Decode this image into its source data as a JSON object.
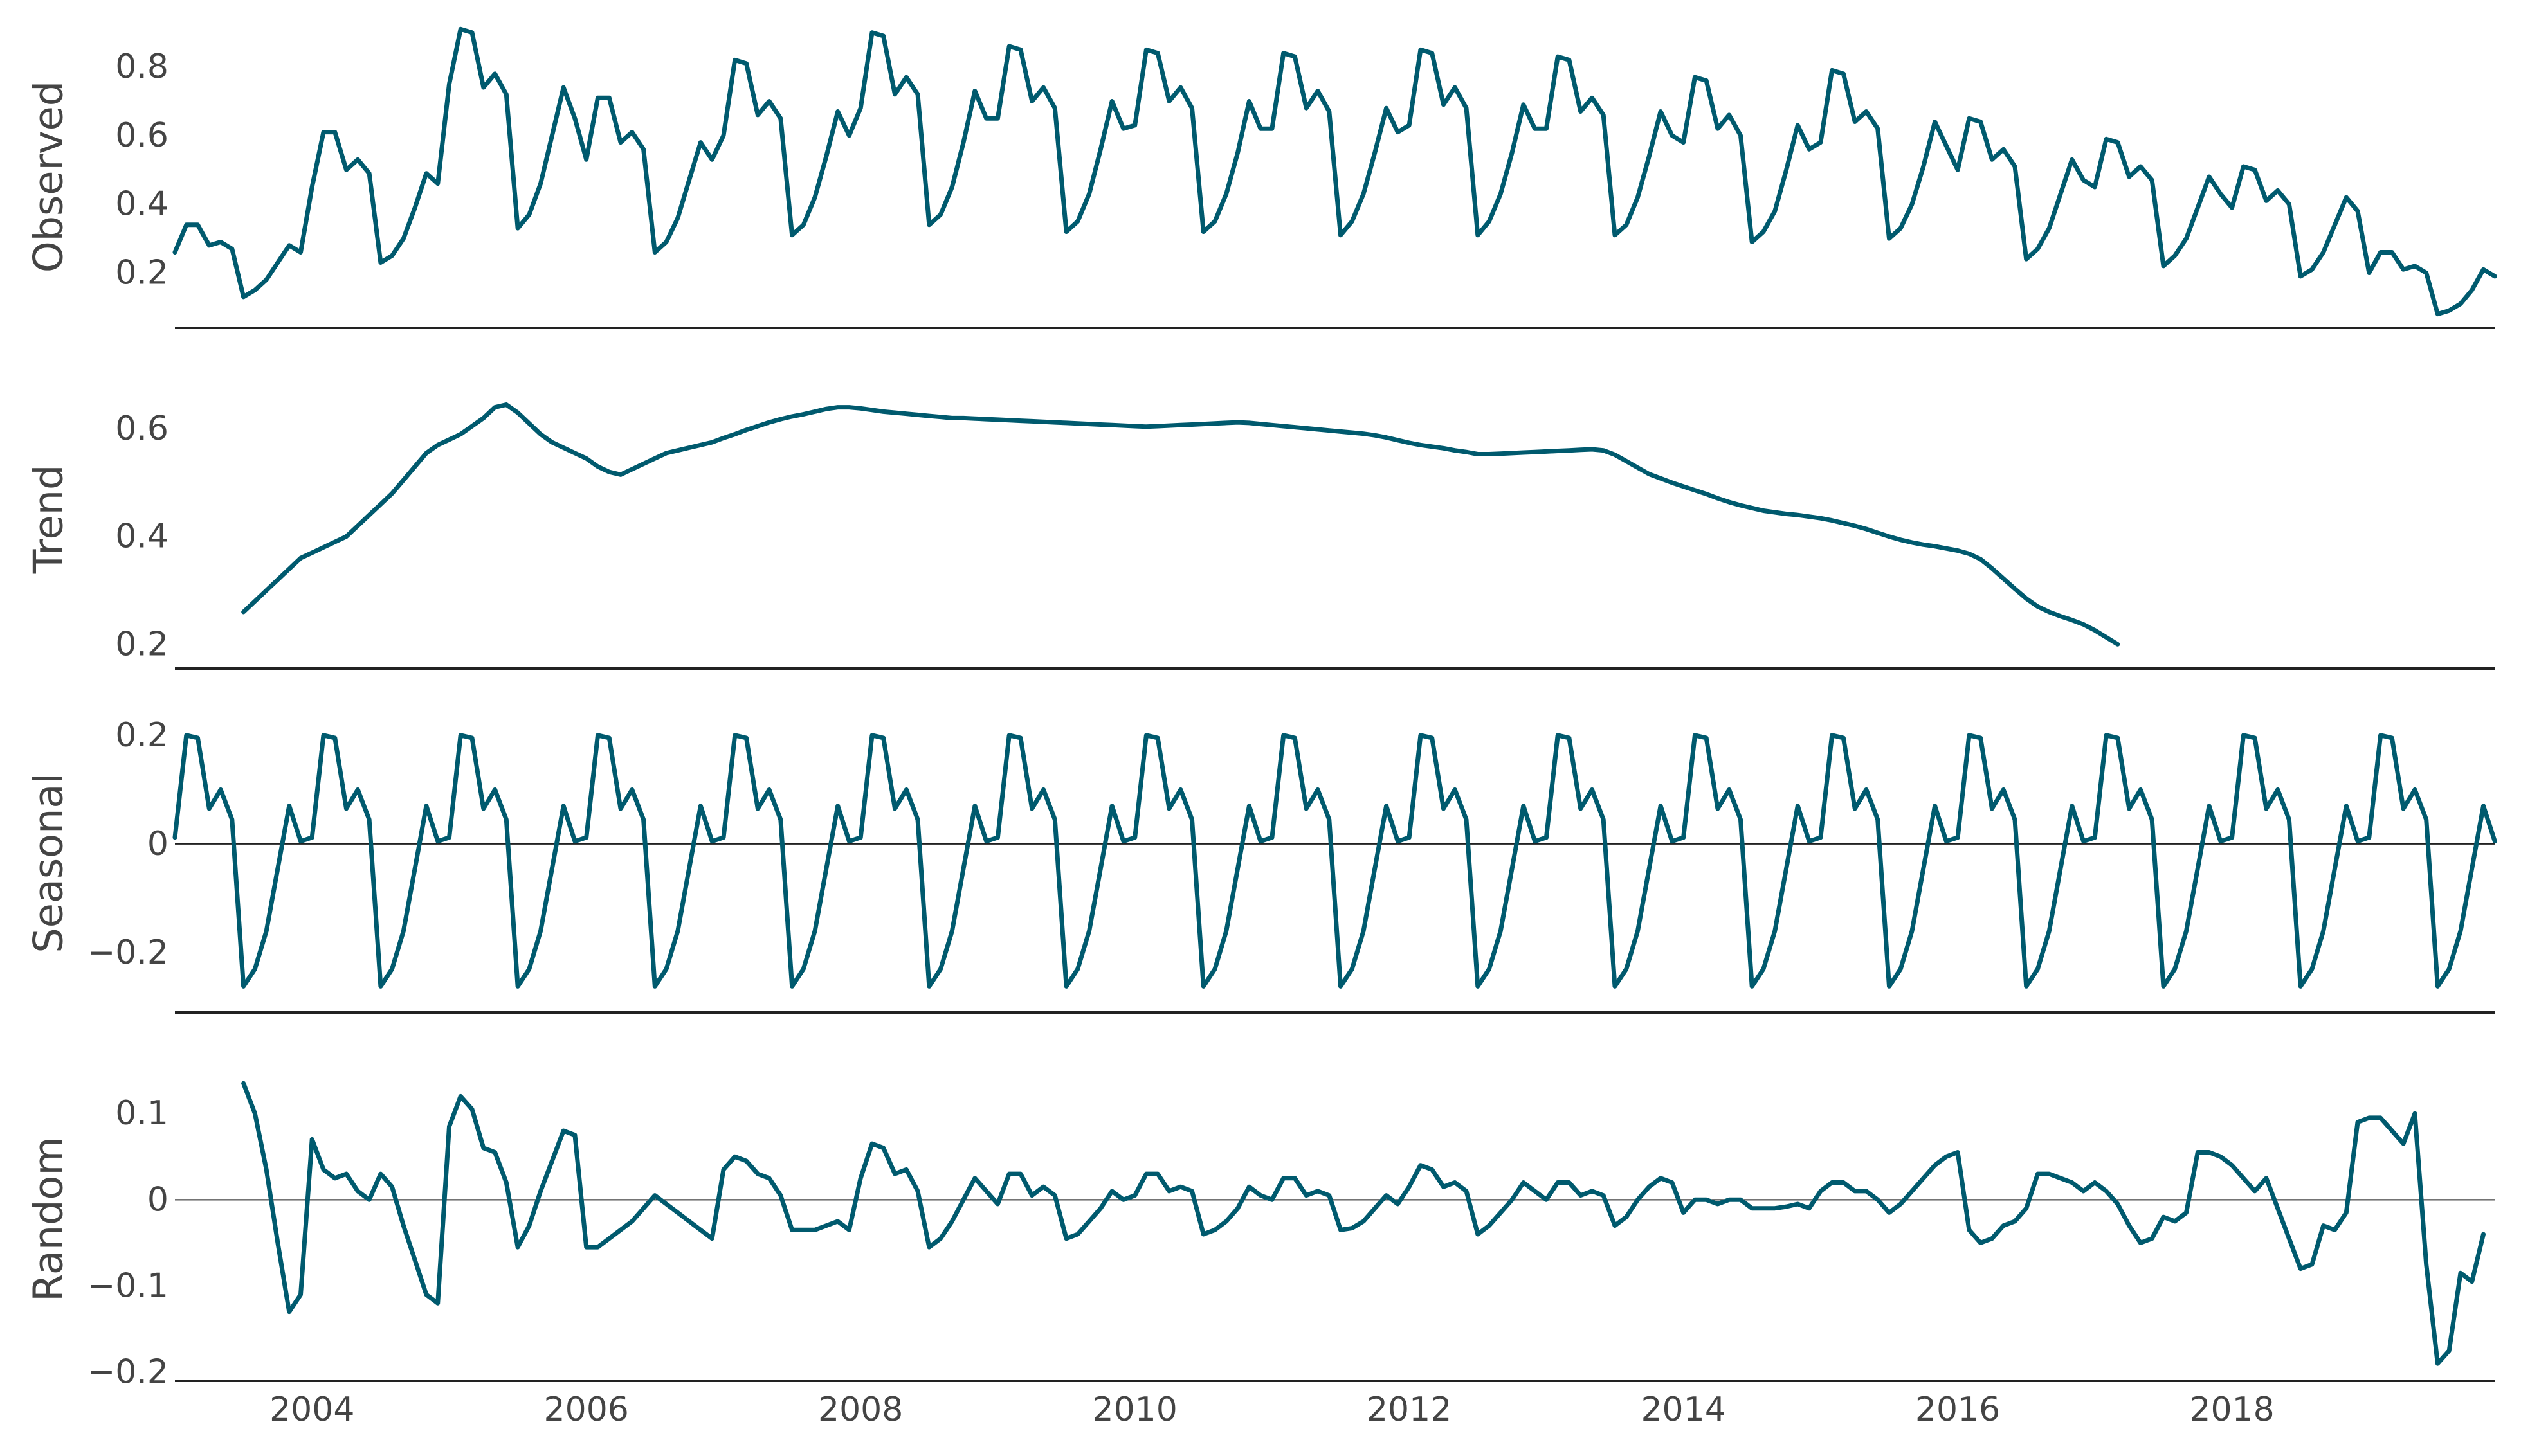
{
  "theme": {
    "line_color": "#005a6e",
    "axis_color": "#222222",
    "text_color": "#444444"
  },
  "chart_data": [
    {
      "type": "line",
      "ylabel": "Observed",
      "x_start": 2003.0,
      "x_step": 0.0833333,
      "ylim": [
        0.04,
        0.92
      ],
      "yticks": [
        0.2,
        0.4,
        0.6,
        0.8
      ],
      "ytick_labels": [
        "0.2",
        "0.4",
        "0.6",
        "0.8"
      ],
      "zero_line": false,
      "values": [
        0.26,
        0.34,
        0.34,
        0.28,
        0.29,
        0.27,
        0.13,
        0.15,
        0.18,
        0.23,
        0.28,
        0.26,
        0.45,
        0.61,
        0.61,
        0.5,
        0.53,
        0.49,
        0.23,
        0.25,
        0.3,
        0.39,
        0.49,
        0.46,
        0.75,
        0.91,
        0.9,
        0.74,
        0.78,
        0.72,
        0.33,
        0.37,
        0.46,
        0.6,
        0.74,
        0.65,
        0.53,
        0.71,
        0.71,
        0.58,
        0.61,
        0.56,
        0.26,
        0.29,
        0.36,
        0.47,
        0.58,
        0.53,
        0.6,
        0.82,
        0.81,
        0.66,
        0.7,
        0.65,
        0.31,
        0.34,
        0.42,
        0.54,
        0.67,
        0.6,
        0.68,
        0.9,
        0.89,
        0.72,
        0.77,
        0.72,
        0.34,
        0.37,
        0.45,
        0.58,
        0.73,
        0.65,
        0.65,
        0.86,
        0.85,
        0.7,
        0.74,
        0.68,
        0.32,
        0.35,
        0.43,
        0.56,
        0.7,
        0.62,
        0.63,
        0.85,
        0.84,
        0.7,
        0.74,
        0.68,
        0.32,
        0.35,
        0.43,
        0.55,
        0.7,
        0.62,
        0.62,
        0.84,
        0.83,
        0.68,
        0.73,
        0.67,
        0.31,
        0.35,
        0.43,
        0.55,
        0.68,
        0.61,
        0.63,
        0.85,
        0.84,
        0.69,
        0.74,
        0.68,
        0.31,
        0.35,
        0.43,
        0.55,
        0.69,
        0.62,
        0.62,
        0.83,
        0.82,
        0.67,
        0.71,
        0.66,
        0.31,
        0.34,
        0.42,
        0.54,
        0.67,
        0.6,
        0.58,
        0.77,
        0.76,
        0.62,
        0.66,
        0.6,
        0.29,
        0.32,
        0.38,
        0.5,
        0.63,
        0.56,
        0.58,
        0.79,
        0.78,
        0.64,
        0.67,
        0.62,
        0.3,
        0.33,
        0.4,
        0.51,
        0.64,
        0.57,
        0.5,
        0.65,
        0.64,
        0.53,
        0.56,
        0.51,
        0.24,
        0.27,
        0.33,
        0.43,
        0.53,
        0.47,
        0.45,
        0.59,
        0.58,
        0.48,
        0.51,
        0.47,
        0.22,
        0.25,
        0.3,
        0.39,
        0.48,
        0.43,
        0.39,
        0.51,
        0.5,
        0.41,
        0.44,
        0.4,
        0.19,
        0.21,
        0.26,
        0.34,
        0.42,
        0.38,
        0.2,
        0.26,
        0.26,
        0.21,
        0.22,
        0.2,
        0.08,
        0.09,
        0.11,
        0.15,
        0.21,
        0.19
      ]
    },
    {
      "type": "line",
      "ylabel": "Trend",
      "x_start": 2003.5,
      "x_step": 0.0833333,
      "ylim": [
        0.155,
        0.71
      ],
      "yticks": [
        0.2,
        0.4,
        0.6
      ],
      "ytick_labels": [
        "0.2",
        "0.4",
        "0.6"
      ],
      "zero_line": false,
      "values": [
        0.26,
        0.28,
        0.3,
        0.32,
        0.34,
        0.36,
        0.37,
        0.38,
        0.39,
        0.4,
        0.42,
        0.44,
        0.46,
        0.48,
        0.505,
        0.53,
        0.555,
        0.57,
        0.58,
        0.59,
        0.605,
        0.62,
        0.64,
        0.645,
        0.63,
        0.61,
        0.59,
        0.575,
        0.565,
        0.555,
        0.545,
        0.53,
        0.52,
        0.515,
        0.525,
        0.535,
        0.545,
        0.555,
        0.56,
        0.565,
        0.57,
        0.575,
        0.583,
        0.59,
        0.598,
        0.605,
        0.612,
        0.618,
        0.623,
        0.627,
        0.632,
        0.637,
        0.64,
        0.64,
        0.638,
        0.635,
        0.632,
        0.63,
        0.628,
        0.626,
        0.624,
        0.622,
        0.62,
        0.62,
        0.619,
        0.618,
        0.617,
        0.616,
        0.615,
        0.614,
        0.613,
        0.612,
        0.611,
        0.61,
        0.609,
        0.608,
        0.607,
        0.606,
        0.605,
        0.604,
        0.605,
        0.606,
        0.607,
        0.608,
        0.609,
        0.61,
        0.611,
        0.612,
        0.611,
        0.609,
        0.607,
        0.605,
        0.603,
        0.601,
        0.599,
        0.597,
        0.595,
        0.593,
        0.591,
        0.588,
        0.584,
        0.579,
        0.574,
        0.57,
        0.567,
        0.564,
        0.56,
        0.557,
        0.553,
        0.553,
        0.554,
        0.555,
        0.556,
        0.557,
        0.558,
        0.559,
        0.56,
        0.561,
        0.562,
        0.56,
        0.552,
        0.54,
        0.528,
        0.516,
        0.508,
        0.5,
        0.493,
        0.486,
        0.479,
        0.471,
        0.464,
        0.458,
        0.453,
        0.448,
        0.445,
        0.442,
        0.44,
        0.437,
        0.434,
        0.43,
        0.425,
        0.42,
        0.414,
        0.407,
        0.4,
        0.394,
        0.389,
        0.385,
        0.382,
        0.378,
        0.374,
        0.368,
        0.358,
        0.341,
        0.322,
        0.303,
        0.285,
        0.27,
        0.26,
        0.252,
        0.245,
        0.237,
        0.226,
        0.213,
        0.2
      ]
    },
    {
      "type": "line",
      "ylabel": "Seasonal",
      "x_start": 2003.0,
      "x_step": 0.0833333,
      "ylim": [
        -0.31,
        0.24
      ],
      "yticks": [
        -0.2,
        0,
        0.2
      ],
      "ytick_labels": [
        "−0.2",
        "0",
        "0.2"
      ],
      "zero_line": true,
      "values": [
        0.012,
        0.2,
        0.195,
        0.065,
        0.1,
        0.045,
        -0.262,
        -0.23,
        -0.16,
        -0.045,
        0.07,
        0.005,
        0.012,
        0.2,
        0.195,
        0.065,
        0.1,
        0.045,
        -0.262,
        -0.23,
        -0.16,
        -0.045,
        0.07,
        0.005,
        0.012,
        0.2,
        0.195,
        0.065,
        0.1,
        0.045,
        -0.262,
        -0.23,
        -0.16,
        -0.045,
        0.07,
        0.005,
        0.012,
        0.2,
        0.195,
        0.065,
        0.1,
        0.045,
        -0.262,
        -0.23,
        -0.16,
        -0.045,
        0.07,
        0.005,
        0.012,
        0.2,
        0.195,
        0.065,
        0.1,
        0.045,
        -0.262,
        -0.23,
        -0.16,
        -0.045,
        0.07,
        0.005,
        0.012,
        0.2,
        0.195,
        0.065,
        0.1,
        0.045,
        -0.262,
        -0.23,
        -0.16,
        -0.045,
        0.07,
        0.005,
        0.012,
        0.2,
        0.195,
        0.065,
        0.1,
        0.045,
        -0.262,
        -0.23,
        -0.16,
        -0.045,
        0.07,
        0.005,
        0.012,
        0.2,
        0.195,
        0.065,
        0.1,
        0.045,
        -0.262,
        -0.23,
        -0.16,
        -0.045,
        0.07,
        0.005,
        0.012,
        0.2,
        0.195,
        0.065,
        0.1,
        0.045,
        -0.262,
        -0.23,
        -0.16,
        -0.045,
        0.07,
        0.005,
        0.012,
        0.2,
        0.195,
        0.065,
        0.1,
        0.045,
        -0.262,
        -0.23,
        -0.16,
        -0.045,
        0.07,
        0.005,
        0.012,
        0.2,
        0.195,
        0.065,
        0.1,
        0.045,
        -0.262,
        -0.23,
        -0.16,
        -0.045,
        0.07,
        0.005,
        0.012,
        0.2,
        0.195,
        0.065,
        0.1,
        0.045,
        -0.262,
        -0.23,
        -0.16,
        -0.045,
        0.07,
        0.005,
        0.012,
        0.2,
        0.195,
        0.065,
        0.1,
        0.045,
        -0.262,
        -0.23,
        -0.16,
        -0.045,
        0.07,
        0.005,
        0.012,
        0.2,
        0.195,
        0.065,
        0.1,
        0.045,
        -0.262,
        -0.23,
        -0.16,
        -0.045,
        0.07,
        0.005,
        0.012,
        0.2,
        0.195,
        0.065,
        0.1,
        0.045,
        -0.262,
        -0.23,
        -0.16,
        -0.045,
        0.07,
        0.005,
        0.012,
        0.2,
        0.195,
        0.065,
        0.1,
        0.045,
        -0.262,
        -0.23,
        -0.16,
        -0.045,
        0.07,
        0.005,
        0.012,
        0.2,
        0.195,
        0.065,
        0.1,
        0.045,
        -0.262,
        -0.23,
        -0.16,
        -0.045,
        0.07,
        0.005
      ]
    },
    {
      "type": "line",
      "ylabel": "Random",
      "x_start": 2003.5,
      "x_step": 0.0833333,
      "ylim": [
        -0.21,
        0.165
      ],
      "yticks": [
        -0.2,
        -0.1,
        0,
        0.1
      ],
      "ytick_labels": [
        "−0.2",
        "−0.1",
        "0",
        "0.1"
      ],
      "zero_line": true,
      "values": [
        0.135,
        0.1,
        0.035,
        -0.05,
        -0.13,
        -0.11,
        0.07,
        0.035,
        0.025,
        0.03,
        0.01,
        0.0,
        0.03,
        0.015,
        -0.03,
        -0.07,
        -0.11,
        -0.12,
        0.085,
        0.12,
        0.105,
        0.06,
        0.055,
        0.02,
        -0.055,
        -0.03,
        0.01,
        0.045,
        0.08,
        0.075,
        -0.055,
        -0.055,
        -0.045,
        -0.035,
        -0.025,
        -0.01,
        0.005,
        -0.005,
        -0.015,
        -0.025,
        -0.035,
        -0.045,
        0.035,
        0.05,
        0.045,
        0.03,
        0.025,
        0.005,
        -0.035,
        -0.035,
        -0.035,
        -0.03,
        -0.025,
        -0.035,
        0.025,
        0.065,
        0.06,
        0.03,
        0.035,
        0.01,
        -0.055,
        -0.045,
        -0.025,
        0.0,
        0.025,
        0.01,
        -0.005,
        0.03,
        0.03,
        0.005,
        0.015,
        0.005,
        -0.045,
        -0.04,
        -0.025,
        -0.01,
        0.01,
        0.0,
        0.005,
        0.03,
        0.03,
        0.01,
        0.015,
        0.01,
        -0.04,
        -0.035,
        -0.025,
        -0.01,
        0.015,
        0.005,
        0.0,
        0.025,
        0.025,
        0.005,
        0.01,
        0.005,
        -0.035,
        -0.033,
        -0.025,
        -0.01,
        0.005,
        -0.005,
        0.015,
        0.04,
        0.035,
        0.015,
        0.02,
        0.01,
        -0.04,
        -0.03,
        -0.015,
        0.0,
        0.02,
        0.01,
        0.0,
        0.02,
        0.02,
        0.005,
        0.01,
        0.005,
        -0.03,
        -0.02,
        0.0,
        0.015,
        0.025,
        0.02,
        -0.015,
        0.0,
        0.0,
        -0.005,
        0.0,
        0.0,
        -0.01,
        -0.01,
        -0.01,
        -0.008,
        -0.005,
        -0.01,
        0.01,
        0.02,
        0.02,
        0.01,
        0.01,
        0.0,
        -0.015,
        -0.005,
        0.01,
        0.025,
        0.04,
        0.05,
        0.055,
        -0.035,
        -0.05,
        -0.045,
        -0.03,
        -0.025,
        -0.01,
        0.03,
        0.03,
        0.025,
        0.02,
        0.01,
        0.02,
        0.01,
        -0.005,
        -0.03,
        -0.05,
        -0.045,
        -0.02,
        -0.025,
        -0.015,
        0.055,
        0.055,
        0.05,
        0.04,
        0.025,
        0.01,
        0.025,
        -0.01,
        -0.045,
        -0.08,
        -0.075,
        -0.03,
        -0.035,
        -0.015,
        0.09,
        0.095,
        0.095,
        0.08,
        0.065,
        0.1,
        -0.075,
        -0.19,
        -0.175,
        -0.085,
        -0.095,
        -0.04
      ]
    }
  ],
  "x_axis": {
    "tick_values": [
      2004,
      2006,
      2008,
      2010,
      2012,
      2014,
      2016,
      2018
    ],
    "tick_labels": [
      "2004",
      "2006",
      "2008",
      "2010",
      "2012",
      "2014",
      "2016",
      "2018"
    ],
    "xlim": [
      2003.0,
      2019.92
    ]
  }
}
